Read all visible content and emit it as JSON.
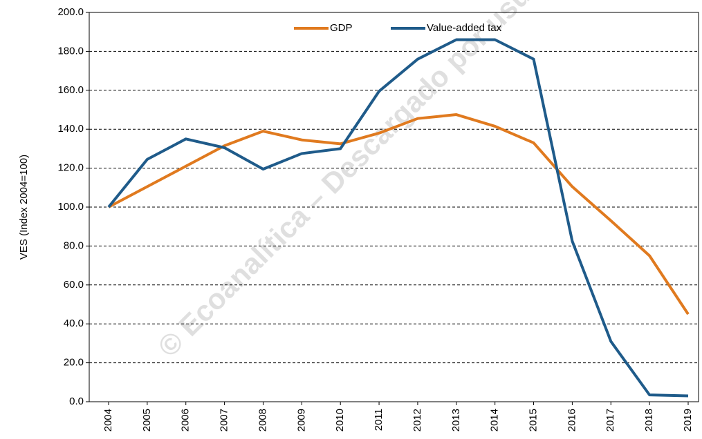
{
  "chart_data": {
    "type": "line",
    "y_label": "VES (Index  2004=100)",
    "watermark": "© Ecoanalítica – Descargado por usu",
    "categories": [
      "2004",
      "2005",
      "2006",
      "2007",
      "2008",
      "2009",
      "2010",
      "2011",
      "2012",
      "2013",
      "2014",
      "2015",
      "2016",
      "2017",
      "2018",
      "2019"
    ],
    "series": [
      {
        "name": "GDP",
        "color": "#e07a1f",
        "values": [
          100,
          110.5,
          121,
          131.5,
          139,
          134.5,
          132.5,
          138,
          145.5,
          147.5,
          141.5,
          133,
          110.5,
          93,
          75,
          45
        ]
      },
      {
        "name": "Value-added tax",
        "color": "#1f5b8a",
        "values": [
          100,
          124.5,
          135,
          130.5,
          119.5,
          127.5,
          130,
          159.5,
          176,
          186,
          186,
          176,
          82.5,
          31,
          3.5,
          3
        ]
      }
    ],
    "ylim": [
      0,
      200
    ],
    "yticks": [
      {
        "value": 0,
        "label": "0.0"
      },
      {
        "value": 20,
        "label": "20.0"
      },
      {
        "value": 40,
        "label": "40.0"
      },
      {
        "value": 60,
        "label": "60.0"
      },
      {
        "value": 80,
        "label": "80.0"
      },
      {
        "value": 100,
        "label": "100.0"
      },
      {
        "value": 120,
        "label": "120.0"
      },
      {
        "value": 140,
        "label": "140.0"
      },
      {
        "value": 160,
        "label": "160.0"
      },
      {
        "value": 180,
        "label": "180.0"
      },
      {
        "value": 200,
        "label": "200.0"
      }
    ],
    "grid": true,
    "legend": "top"
  }
}
